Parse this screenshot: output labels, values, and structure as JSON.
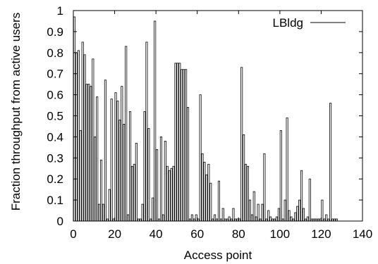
{
  "chart_data": {
    "type": "bar",
    "title": "",
    "xlabel": "Access point",
    "ylabel": "Fraction throughput from active users",
    "xlim": [
      0,
      140
    ],
    "ylim": [
      0,
      1
    ],
    "x_ticks": [
      "0",
      "20",
      "40",
      "60",
      "80",
      "100",
      "120",
      "140"
    ],
    "y_ticks": [
      "0",
      "0.1",
      "0.2",
      "0.3",
      "0.4",
      "0.5",
      "0.6",
      "0.7",
      "0.8",
      "0.9",
      "1"
    ],
    "grid": false,
    "legend_position": "top-right",
    "series": [
      {
        "name": "LBldg",
        "x": [
          0,
          1,
          2,
          3,
          4,
          5,
          6,
          7,
          8,
          9,
          10,
          11,
          12,
          13,
          14,
          15,
          16,
          17,
          18,
          19,
          20,
          21,
          22,
          23,
          24,
          25,
          26,
          27,
          28,
          29,
          30,
          31,
          32,
          33,
          34,
          35,
          36,
          37,
          38,
          39,
          40,
          41,
          42,
          43,
          44,
          45,
          46,
          47,
          48,
          49,
          50,
          51,
          52,
          53,
          54,
          55,
          56,
          57,
          58,
          59,
          60,
          61,
          62,
          63,
          64,
          65,
          66,
          67,
          68,
          69,
          70,
          71,
          72,
          73,
          74,
          75,
          76,
          77,
          78,
          79,
          80,
          81,
          82,
          83,
          84,
          85,
          86,
          87,
          88,
          89,
          90,
          91,
          92,
          93,
          94,
          95,
          96,
          97,
          98,
          99,
          100,
          101,
          102,
          103,
          104,
          105,
          106,
          107,
          108,
          109,
          110,
          111,
          112,
          113,
          114,
          115,
          116,
          117,
          118,
          119,
          120,
          121,
          122,
          123,
          124,
          125,
          126,
          127
        ],
        "values": [
          0.97,
          0.8,
          0.81,
          0.43,
          0.85,
          0.79,
          0.65,
          0.65,
          0.64,
          0.77,
          0.4,
          0.59,
          0.08,
          0.29,
          0.08,
          0.67,
          0.01,
          0.15,
          0.58,
          0.01,
          0.61,
          0.57,
          0.48,
          0.64,
          0.46,
          0.83,
          0.03,
          0.52,
          0.26,
          0.27,
          0.37,
          0.01,
          0.01,
          0.08,
          0.52,
          0.85,
          0.44,
          0.01,
          0.11,
          0.95,
          0.34,
          0.01,
          0.4,
          0.03,
          0.38,
          0.26,
          0.24,
          0.25,
          0.26,
          0.75,
          0.75,
          0.75,
          0.72,
          0.72,
          0.72,
          0.54,
          0.01,
          0.03,
          0.01,
          0.03,
          0.01,
          0.6,
          0.32,
          0.28,
          0.22,
          0.27,
          0.18,
          0.01,
          0.03,
          0.01,
          0.19,
          0.01,
          0.06,
          0.01,
          0.01,
          0.02,
          0.01,
          0.06,
          0.01,
          0.01,
          0.01,
          0.73,
          0.41,
          0.27,
          0.26,
          0.1,
          0.03,
          0.14,
          0.02,
          0.08,
          0.01,
          0.08,
          0.32,
          0.01,
          0.05,
          0.02,
          0.01,
          0.01,
          0.02,
          0.06,
          0.43,
          0.01,
          0.1,
          0.49,
          0.05,
          0.02,
          0.01,
          0.04,
          0.07,
          0.1,
          0.24,
          0.06,
          0.01,
          0.02,
          0.2,
          0.01,
          0.01,
          0.01,
          0.01,
          0.01,
          0.1,
          0.01,
          0.03,
          0.01,
          0.56,
          0.01,
          0.01,
          0.01
        ]
      }
    ]
  }
}
